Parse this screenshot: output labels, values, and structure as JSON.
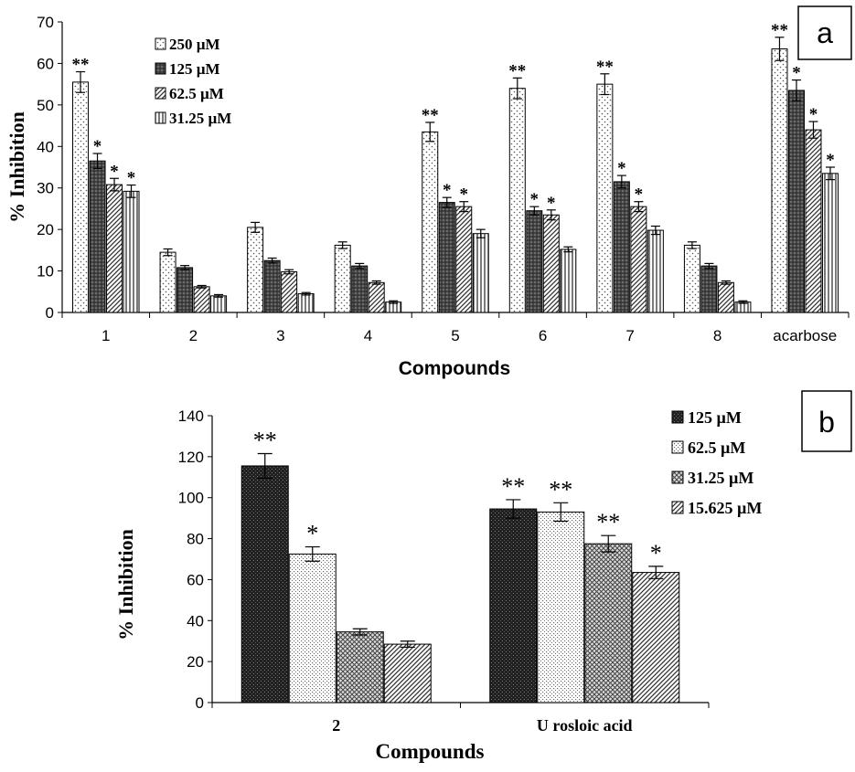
{
  "chart_data": [
    {
      "type": "bar",
      "panel_label": "a",
      "xlabel": "Compounds",
      "ylabel": "% Inhibition",
      "ylim": [
        0,
        70
      ],
      "yticks": [
        0,
        10,
        20,
        30,
        40,
        50,
        60,
        70
      ],
      "categories": [
        "1",
        "2",
        "3",
        "4",
        "5",
        "6",
        "7",
        "8",
        "acarbose"
      ],
      "legend_placement": "top-left",
      "series": [
        {
          "name": "250 µM",
          "pattern": "dots",
          "values": [
            55.5,
            14.5,
            20.5,
            16.2,
            43.5,
            54.0,
            55.0,
            16.2,
            63.5
          ],
          "errors": [
            2.5,
            0.8,
            1.2,
            0.8,
            2.3,
            2.5,
            2.5,
            0.8,
            2.8
          ],
          "marks": [
            "**",
            "",
            "",
            "",
            "**",
            "**",
            "**",
            "",
            "**"
          ]
        },
        {
          "name": "125 µM",
          "pattern": "dark-dots",
          "values": [
            36.5,
            10.8,
            12.5,
            11.2,
            26.5,
            24.5,
            31.5,
            11.2,
            53.5
          ],
          "errors": [
            1.8,
            0.5,
            0.6,
            0.6,
            1.2,
            1.0,
            1.5,
            0.6,
            2.5
          ],
          "marks": [
            "*",
            "",
            "",
            "",
            "*",
            "*",
            "*",
            "",
            "*"
          ]
        },
        {
          "name": "62.5 µM",
          "pattern": "diagonal",
          "values": [
            30.8,
            6.2,
            9.8,
            7.2,
            25.5,
            23.5,
            25.5,
            7.2,
            44.0
          ],
          "errors": [
            1.5,
            0.3,
            0.5,
            0.4,
            1.2,
            1.2,
            1.2,
            0.4,
            2.0
          ],
          "marks": [
            "*",
            "",
            "",
            "",
            "*",
            "*",
            "*",
            "",
            "*"
          ]
        },
        {
          "name": "31.25 µM",
          "pattern": "vertical",
          "values": [
            29.2,
            4.0,
            4.5,
            2.5,
            19.0,
            15.2,
            19.8,
            2.5,
            33.5
          ],
          "errors": [
            1.5,
            0.3,
            0.3,
            0.3,
            1.0,
            0.6,
            1.0,
            0.3,
            1.5
          ],
          "marks": [
            "*",
            "",
            "",
            "",
            "",
            "",
            "",
            "",
            "*"
          ]
        }
      ]
    },
    {
      "type": "bar",
      "panel_label": "b",
      "xlabel": "Compounds",
      "ylabel": "% Inhibition",
      "ylim": [
        0,
        140
      ],
      "yticks": [
        0,
        20,
        40,
        60,
        80,
        100,
        120,
        140
      ],
      "categories": [
        "2",
        "U rosloic acid"
      ],
      "legend_placement": "top-right",
      "series": [
        {
          "name": "125 µM",
          "pattern": "dense-dark",
          "values": [
            115.5,
            94.5
          ],
          "errors": [
            6.0,
            4.5
          ],
          "marks": [
            "**",
            "**"
          ]
        },
        {
          "name": "62.5 µM",
          "pattern": "light-dots",
          "values": [
            72.5,
            93.0
          ],
          "errors": [
            3.5,
            4.5
          ],
          "marks": [
            "*",
            "**"
          ]
        },
        {
          "name": "31.25 µM",
          "pattern": "crosshatch",
          "values": [
            34.5,
            77.5
          ],
          "errors": [
            1.5,
            4.0
          ],
          "marks": [
            "",
            "**"
          ]
        },
        {
          "name": "15.625 µM",
          "pattern": "diagonal",
          "values": [
            28.5,
            63.5
          ],
          "errors": [
            1.5,
            3.0
          ],
          "marks": [
            "",
            "*"
          ]
        }
      ]
    }
  ]
}
